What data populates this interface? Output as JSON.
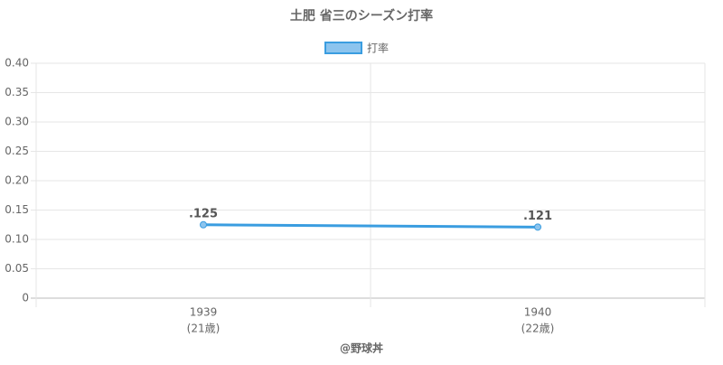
{
  "chart_data": {
    "type": "line",
    "title": "土肥 省三のシーズン打率",
    "categories": [
      "1939",
      "1940"
    ],
    "age_labels": [
      "(21歳)",
      "(22歳)"
    ],
    "series": [
      {
        "name": "打率",
        "color": "#3a9de0",
        "values": [
          0.125,
          0.121
        ],
        "value_labels": [
          ".125",
          ".121"
        ]
      }
    ],
    "ylim": [
      0,
      0.4
    ],
    "yticks": [
      0,
      0.05,
      {
        "value": 0.1,
        "label": "0.10"
      },
      0.15,
      {
        "value": 0.2,
        "label": "0.20"
      },
      0.25,
      {
        "value": 0.3,
        "label": "0.30"
      },
      0.35,
      {
        "value": 0.4,
        "label": "0.40"
      }
    ],
    "grid": true,
    "legend": "top",
    "annotation": "@野球丼"
  }
}
